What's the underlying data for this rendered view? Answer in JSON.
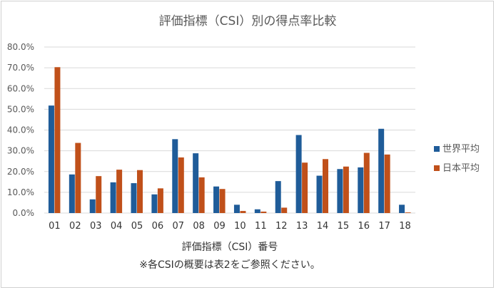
{
  "chart_data": {
    "type": "bar",
    "title": "評価指標（CSI）別の得点率比較",
    "xlabel": "評価指標（CSI）番号",
    "note": "※各CSIの概要は表2をご参照ください。",
    "ylabel": "",
    "ylim": [
      0,
      80
    ],
    "yticks": [
      "0.0%",
      "10.0%",
      "20.0%",
      "30.0%",
      "40.0%",
      "50.0%",
      "60.0%",
      "70.0%",
      "80.0%"
    ],
    "grid": true,
    "legend_position": "right",
    "categories": [
      "01",
      "02",
      "03",
      "04",
      "05",
      "06",
      "07",
      "08",
      "09",
      "10",
      "11",
      "12",
      "13",
      "14",
      "15",
      "16",
      "17",
      "18"
    ],
    "series": [
      {
        "name": "世界平均",
        "color": "#1f5c99",
        "values": [
          51.8,
          18.6,
          6.6,
          14.8,
          14.4,
          9.0,
          35.6,
          28.8,
          12.8,
          4.0,
          1.8,
          15.4,
          37.6,
          18.0,
          21.2,
          22.0,
          40.6,
          4.0
        ]
      },
      {
        "name": "日本平均",
        "color": "#c0501a",
        "values": [
          70.3,
          33.8,
          17.8,
          20.9,
          20.7,
          11.9,
          26.8,
          17.2,
          11.6,
          1.0,
          0.7,
          2.6,
          24.3,
          26.0,
          22.4,
          29.0,
          28.2,
          0.3
        ]
      }
    ]
  }
}
